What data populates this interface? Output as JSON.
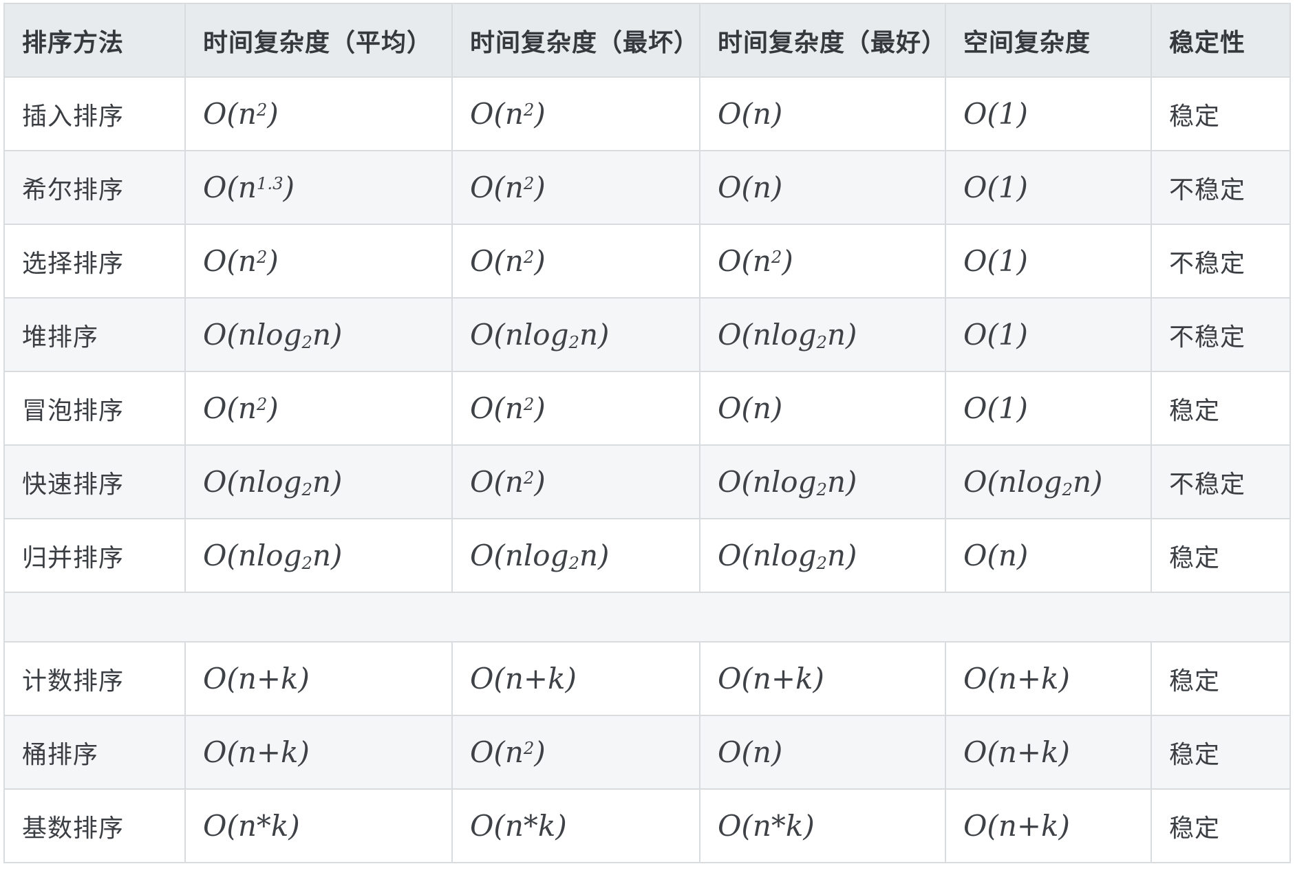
{
  "table": {
    "headers": {
      "method": "排序方法",
      "time_avg": "时间复杂度（平均）",
      "time_worst": "时间复杂度（最坏）",
      "time_best": "时间复杂度（最好）",
      "space": "空间复杂度",
      "stability": "稳定性"
    },
    "comparison_rows": [
      {
        "method": "插入排序",
        "time_avg": "O(n^2)",
        "time_worst": "O(n^2)",
        "time_best": "O(n)",
        "space": "O(1)",
        "stability": "稳定"
      },
      {
        "method": "希尔排序",
        "time_avg": "O(n^1.3)",
        "time_worst": "O(n^2)",
        "time_best": "O(n)",
        "space": "O(1)",
        "stability": "不稳定"
      },
      {
        "method": "选择排序",
        "time_avg": "O(n^2)",
        "time_worst": "O(n^2)",
        "time_best": "O(n^2)",
        "space": "O(1)",
        "stability": "不稳定"
      },
      {
        "method": "堆排序",
        "time_avg": "O(nlog_2n)",
        "time_worst": "O(nlog_2n)",
        "time_best": "O(nlog_2n)",
        "space": "O(1)",
        "stability": "不稳定"
      },
      {
        "method": "冒泡排序",
        "time_avg": "O(n^2)",
        "time_worst": "O(n^2)",
        "time_best": "O(n)",
        "space": "O(1)",
        "stability": "稳定"
      },
      {
        "method": "快速排序",
        "time_avg": "O(nlog_2n)",
        "time_worst": "O(n^2)",
        "time_best": "O(nlog_2n)",
        "space": "O(nlog_2n)",
        "stability": "不稳定"
      },
      {
        "method": "归并排序",
        "time_avg": "O(nlog_2n)",
        "time_worst": "O(nlog_2n)",
        "time_best": "O(nlog_2n)",
        "space": "O(n)",
        "stability": "稳定"
      }
    ],
    "linear_rows": [
      {
        "method": "计数排序",
        "time_avg": "O(n+k)",
        "time_worst": "O(n+k)",
        "time_best": "O(n+k)",
        "space": "O(n+k)",
        "stability": "稳定"
      },
      {
        "method": "桶排序",
        "time_avg": "O(n+k)",
        "time_worst": "O(n^2)",
        "time_best": "O(n)",
        "space": "O(n+k)",
        "stability": "稳定"
      },
      {
        "method": "基数排序",
        "time_avg": "O(n*k)",
        "time_worst": "O(n*k)",
        "time_best": "O(n*k)",
        "space": "O(n+k)",
        "stability": "稳定"
      }
    ],
    "colors": {
      "header_bg": "#e8ebee",
      "zebra_stripe_bg": "#f5f6f7",
      "border": "#d9dcde",
      "text": "#3a3e43"
    }
  }
}
